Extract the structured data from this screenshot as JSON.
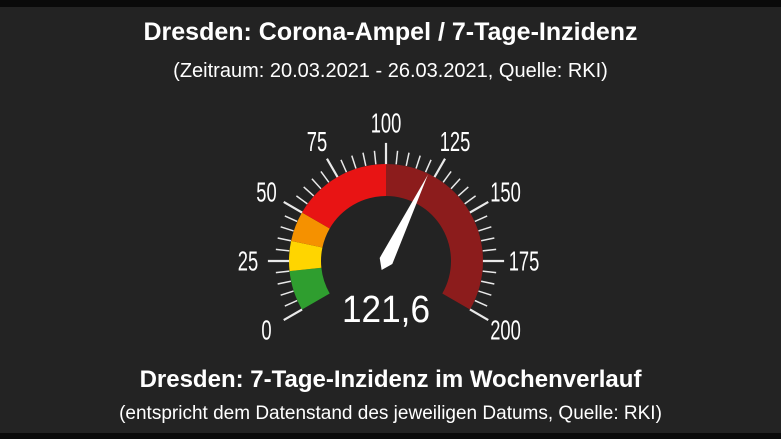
{
  "window": {
    "background": "#232323",
    "frame_bar_color": "#0a0a0a"
  },
  "header": {
    "title": "Dresden: Corona-Ampel / 7-Tage-Inzidenz",
    "subtitle": "(Zeitraum: 20.03.2021 - 26.03.2021, Quelle: RKI)"
  },
  "footer": {
    "title": "Dresden: 7-Tage-Inzidenz im Wochenverlauf",
    "subtitle": "(entspricht dem Datenstand des jeweiligen Datums, Quelle: RKI)"
  },
  "chart_data": {
    "type": "gauge",
    "title": "Dresden: Corona-Ampel / 7-Tage-Inzidenz",
    "min": 0,
    "max": 200,
    "value": 121.6,
    "value_display": "121,6",
    "start_angle": 210,
    "end_angle": -30,
    "minor_tick_step": 5,
    "major_tick_step": 25,
    "major_tick_labels": [
      "0",
      "25",
      "50",
      "75",
      "100",
      "125",
      "150",
      "175",
      "200"
    ],
    "segments": [
      {
        "from": 0,
        "to": 20,
        "color": "#2f9e2f"
      },
      {
        "from": 20,
        "to": 35,
        "color": "#ffd500"
      },
      {
        "from": 35,
        "to": 50,
        "color": "#f59100"
      },
      {
        "from": 50,
        "to": 100,
        "color": "#e81414"
      },
      {
        "from": 100,
        "to": 200,
        "color": "#8c1c1c"
      }
    ],
    "tick_color": "#e9e9e9",
    "label_color": "#ffffff",
    "needle_color": "#ffffff",
    "value_color": "#ffffff",
    "legend_position": "none",
    "grid": false
  }
}
